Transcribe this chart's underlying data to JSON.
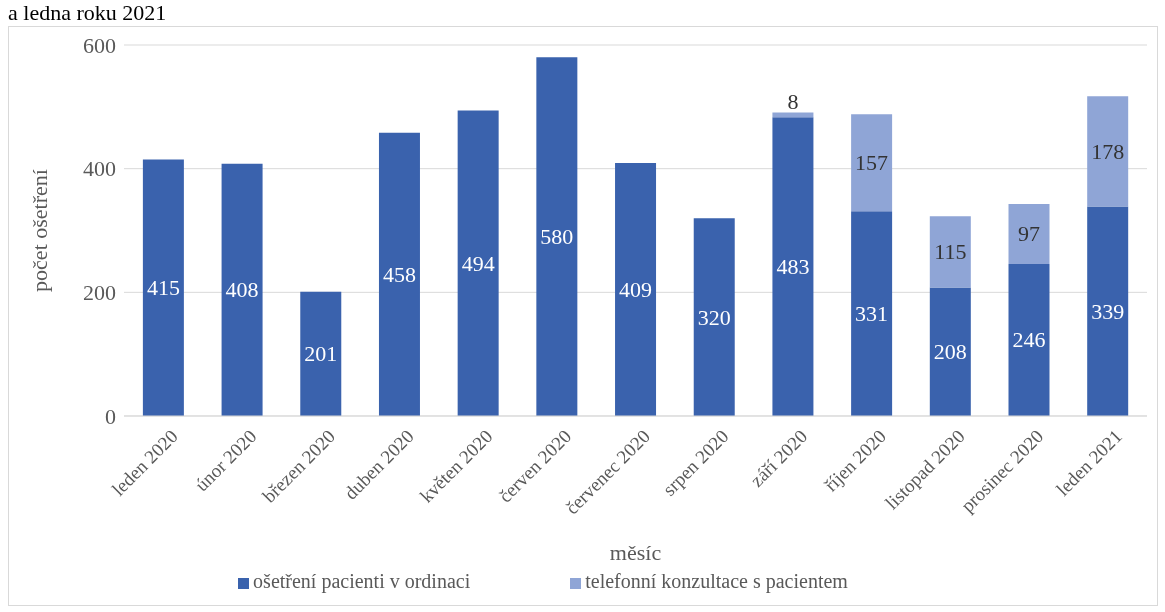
{
  "chart_data": {
    "type": "bar",
    "title": "a ledna roku 2021",
    "xlabel": "měsíc",
    "ylabel": "počet ošetření",
    "categories": [
      "leden 2020",
      "únor 2020",
      "březen 2020",
      "duben 2020",
      "květen 2020",
      "červen 2020",
      "červenec 2020",
      "srpen 2020",
      "září 2020",
      "říjen 2020",
      "listopad 2020",
      "prosinec 2020",
      "leden 2021"
    ],
    "series": [
      {
        "name": "ošetření pacienti v ordinaci",
        "color": "#3a62ad",
        "values": [
          415,
          408,
          201,
          458,
          494,
          580,
          409,
          320,
          483,
          331,
          208,
          246,
          339
        ]
      },
      {
        "name": "telefonní konzultace s pacientem",
        "color": "#8fa5d6",
        "values": [
          null,
          null,
          null,
          null,
          null,
          null,
          null,
          null,
          8,
          157,
          115,
          97,
          178
        ]
      }
    ],
    "stacked": true,
    "ylim": [
      0,
      600
    ],
    "yticks": [
      0,
      200,
      400,
      600
    ],
    "grid": "y",
    "legend": "bottom",
    "data_labels": true
  }
}
